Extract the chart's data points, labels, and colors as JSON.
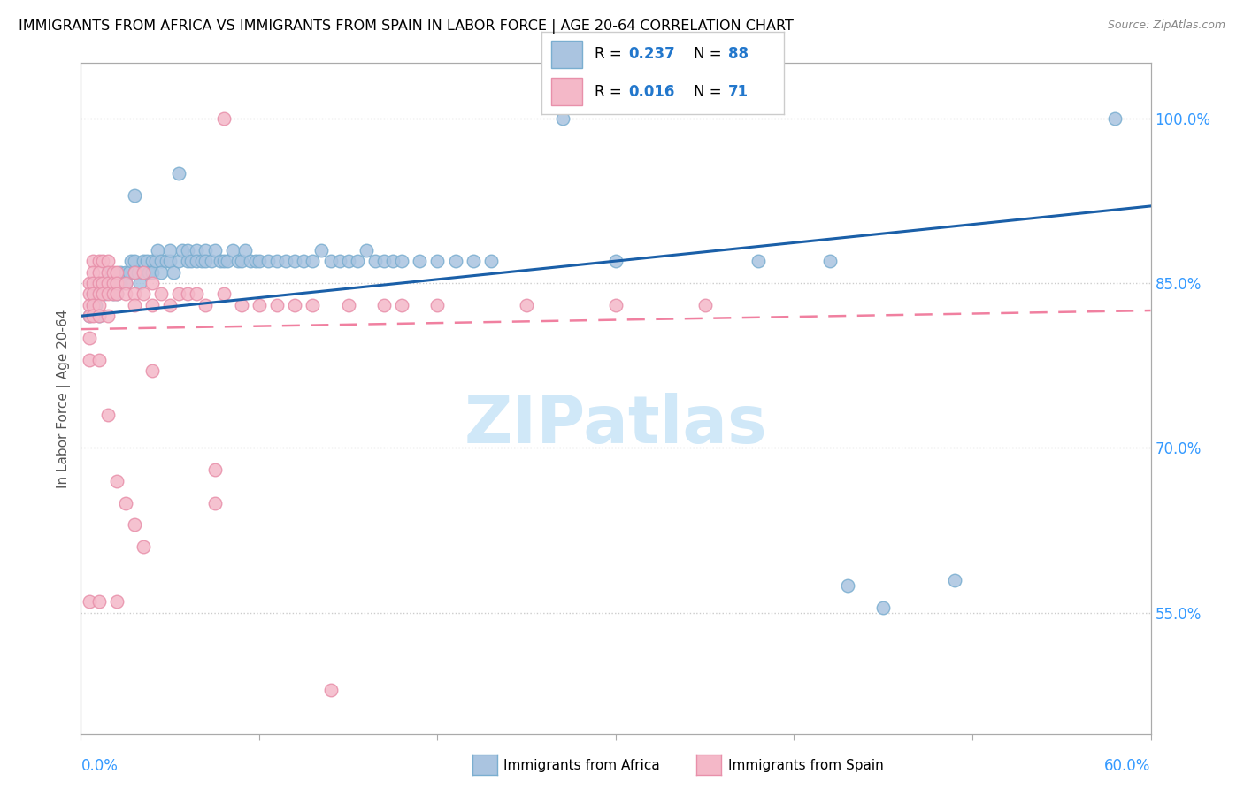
{
  "title": "IMMIGRANTS FROM AFRICA VS IMMIGRANTS FROM SPAIN IN LABOR FORCE | AGE 20-64 CORRELATION CHART",
  "source": "Source: ZipAtlas.com",
  "ylabel": "In Labor Force | Age 20-64",
  "yticks_right": [
    "55.0%",
    "70.0%",
    "85.0%",
    "100.0%"
  ],
  "yticks_right_vals": [
    0.55,
    0.7,
    0.85,
    1.0
  ],
  "xlim": [
    0.0,
    0.6
  ],
  "ylim": [
    0.44,
    1.05
  ],
  "africa_color": "#aac4e0",
  "spain_color": "#f4b8c8",
  "africa_edge": "#7aaed0",
  "spain_edge": "#e890aa",
  "trend_africa_color": "#1a5fa8",
  "trend_spain_color": "#f080a0",
  "watermark_color": "#d0e8f8",
  "watermark_text": "ZIPatlas",
  "africa_scatter": [
    [
      0.005,
      0.82
    ],
    [
      0.007,
      0.84
    ],
    [
      0.008,
      0.83
    ],
    [
      0.009,
      0.85
    ],
    [
      0.01,
      0.84
    ],
    [
      0.01,
      0.82
    ],
    [
      0.012,
      0.85
    ],
    [
      0.013,
      0.84
    ],
    [
      0.015,
      0.86
    ],
    [
      0.015,
      0.85
    ],
    [
      0.017,
      0.85
    ],
    [
      0.018,
      0.84
    ],
    [
      0.02,
      0.85
    ],
    [
      0.02,
      0.84
    ],
    [
      0.022,
      0.86
    ],
    [
      0.022,
      0.85
    ],
    [
      0.025,
      0.86
    ],
    [
      0.025,
      0.85
    ],
    [
      0.027,
      0.86
    ],
    [
      0.028,
      0.87
    ],
    [
      0.03,
      0.87
    ],
    [
      0.03,
      0.86
    ],
    [
      0.032,
      0.86
    ],
    [
      0.033,
      0.85
    ],
    [
      0.035,
      0.87
    ],
    [
      0.035,
      0.86
    ],
    [
      0.037,
      0.87
    ],
    [
      0.038,
      0.86
    ],
    [
      0.04,
      0.87
    ],
    [
      0.04,
      0.86
    ],
    [
      0.042,
      0.87
    ],
    [
      0.043,
      0.88
    ],
    [
      0.045,
      0.87
    ],
    [
      0.045,
      0.86
    ],
    [
      0.048,
      0.87
    ],
    [
      0.05,
      0.87
    ],
    [
      0.05,
      0.88
    ],
    [
      0.052,
      0.86
    ],
    [
      0.055,
      0.87
    ],
    [
      0.057,
      0.88
    ],
    [
      0.06,
      0.87
    ],
    [
      0.06,
      0.88
    ],
    [
      0.062,
      0.87
    ],
    [
      0.065,
      0.88
    ],
    [
      0.065,
      0.87
    ],
    [
      0.068,
      0.87
    ],
    [
      0.07,
      0.88
    ],
    [
      0.07,
      0.87
    ],
    [
      0.073,
      0.87
    ],
    [
      0.075,
      0.88
    ],
    [
      0.078,
      0.87
    ],
    [
      0.08,
      0.87
    ],
    [
      0.082,
      0.87
    ],
    [
      0.085,
      0.88
    ],
    [
      0.088,
      0.87
    ],
    [
      0.09,
      0.87
    ],
    [
      0.092,
      0.88
    ],
    [
      0.095,
      0.87
    ],
    [
      0.098,
      0.87
    ],
    [
      0.1,
      0.87
    ],
    [
      0.105,
      0.87
    ],
    [
      0.11,
      0.87
    ],
    [
      0.115,
      0.87
    ],
    [
      0.12,
      0.87
    ],
    [
      0.125,
      0.87
    ],
    [
      0.13,
      0.87
    ],
    [
      0.135,
      0.88
    ],
    [
      0.14,
      0.87
    ],
    [
      0.145,
      0.87
    ],
    [
      0.15,
      0.87
    ],
    [
      0.155,
      0.87
    ],
    [
      0.16,
      0.88
    ],
    [
      0.165,
      0.87
    ],
    [
      0.17,
      0.87
    ],
    [
      0.175,
      0.87
    ],
    [
      0.18,
      0.87
    ],
    [
      0.19,
      0.87
    ],
    [
      0.2,
      0.87
    ],
    [
      0.21,
      0.87
    ],
    [
      0.22,
      0.87
    ],
    [
      0.23,
      0.87
    ],
    [
      0.3,
      0.87
    ],
    [
      0.03,
      0.93
    ],
    [
      0.055,
      0.95
    ],
    [
      0.27,
      1.0
    ],
    [
      0.58,
      1.0
    ],
    [
      0.38,
      0.87
    ],
    [
      0.42,
      0.87
    ],
    [
      0.43,
      0.575
    ],
    [
      0.45,
      0.555
    ],
    [
      0.49,
      0.58
    ]
  ],
  "spain_scatter": [
    [
      0.005,
      0.85
    ],
    [
      0.005,
      0.84
    ],
    [
      0.005,
      0.83
    ],
    [
      0.005,
      0.82
    ],
    [
      0.005,
      0.8
    ],
    [
      0.005,
      0.78
    ],
    [
      0.005,
      0.56
    ],
    [
      0.007,
      0.87
    ],
    [
      0.007,
      0.86
    ],
    [
      0.007,
      0.85
    ],
    [
      0.007,
      0.84
    ],
    [
      0.007,
      0.83
    ],
    [
      0.007,
      0.82
    ],
    [
      0.01,
      0.87
    ],
    [
      0.01,
      0.86
    ],
    [
      0.01,
      0.85
    ],
    [
      0.01,
      0.84
    ],
    [
      0.01,
      0.83
    ],
    [
      0.01,
      0.82
    ],
    [
      0.01,
      0.78
    ],
    [
      0.01,
      0.56
    ],
    [
      0.012,
      0.87
    ],
    [
      0.012,
      0.85
    ],
    [
      0.012,
      0.84
    ],
    [
      0.015,
      0.87
    ],
    [
      0.015,
      0.86
    ],
    [
      0.015,
      0.85
    ],
    [
      0.015,
      0.84
    ],
    [
      0.015,
      0.82
    ],
    [
      0.015,
      0.73
    ],
    [
      0.018,
      0.86
    ],
    [
      0.018,
      0.85
    ],
    [
      0.018,
      0.84
    ],
    [
      0.02,
      0.86
    ],
    [
      0.02,
      0.85
    ],
    [
      0.02,
      0.84
    ],
    [
      0.02,
      0.67
    ],
    [
      0.025,
      0.85
    ],
    [
      0.025,
      0.84
    ],
    [
      0.025,
      0.65
    ],
    [
      0.03,
      0.86
    ],
    [
      0.03,
      0.84
    ],
    [
      0.03,
      0.83
    ],
    [
      0.03,
      0.63
    ],
    [
      0.035,
      0.86
    ],
    [
      0.035,
      0.84
    ],
    [
      0.035,
      0.61
    ],
    [
      0.04,
      0.85
    ],
    [
      0.04,
      0.83
    ],
    [
      0.04,
      0.77
    ],
    [
      0.045,
      0.84
    ],
    [
      0.05,
      0.83
    ],
    [
      0.055,
      0.84
    ],
    [
      0.06,
      0.84
    ],
    [
      0.065,
      0.84
    ],
    [
      0.07,
      0.83
    ],
    [
      0.08,
      0.84
    ],
    [
      0.09,
      0.83
    ],
    [
      0.1,
      0.83
    ],
    [
      0.11,
      0.83
    ],
    [
      0.12,
      0.83
    ],
    [
      0.13,
      0.83
    ],
    [
      0.15,
      0.83
    ],
    [
      0.17,
      0.83
    ],
    [
      0.18,
      0.83
    ],
    [
      0.2,
      0.83
    ],
    [
      0.25,
      0.83
    ],
    [
      0.3,
      0.83
    ],
    [
      0.35,
      0.83
    ],
    [
      0.02,
      0.56
    ],
    [
      0.08,
      1.0
    ],
    [
      0.075,
      0.68
    ],
    [
      0.075,
      0.65
    ],
    [
      0.14,
      0.48
    ]
  ]
}
